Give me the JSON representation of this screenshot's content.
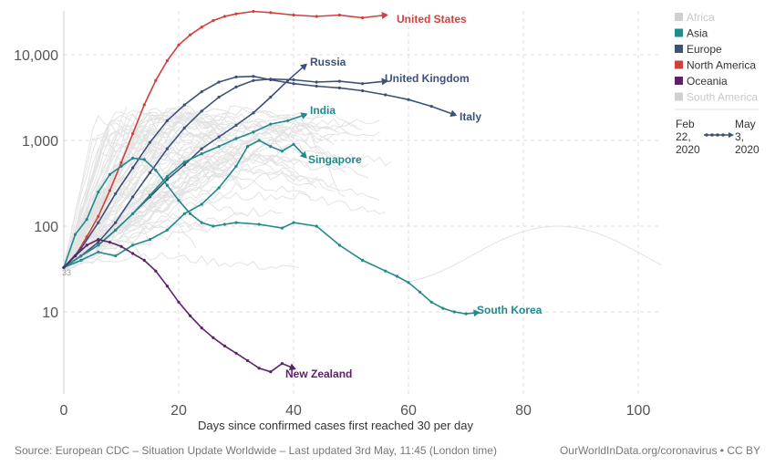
{
  "chart_data": {
    "type": "line",
    "title": "",
    "xlabel": "Days since confirmed cases first reached 30 per day",
    "ylabel": "",
    "y_scale": "log",
    "xlim": [
      0,
      104
    ],
    "ylim": [
      1,
      32000
    ],
    "x_ticks": [
      0,
      20,
      40,
      60,
      80,
      100
    ],
    "x_tick_labels": [
      "0",
      "20",
      "40",
      "60",
      "80",
      "100"
    ],
    "y_ticks": [
      10,
      100,
      1000,
      10000
    ],
    "y_tick_labels": [
      "10",
      "100",
      "1,000",
      "10,000"
    ],
    "grid": true,
    "legend_position": "right",
    "legend": [
      {
        "name": "Africa",
        "color": "#d0d0d0",
        "active": false
      },
      {
        "name": "Asia",
        "color": "#218a8c",
        "active": true
      },
      {
        "name": "Europe",
        "color": "#3d5178",
        "active": true
      },
      {
        "name": "North America",
        "color": "#d0413d",
        "active": true
      },
      {
        "name": "Oceania",
        "color": "#5b2268",
        "active": true
      },
      {
        "name": "South America",
        "color": "#d0d0d0",
        "active": false
      }
    ],
    "time_range": {
      "start": "Feb 22, 2020",
      "end": "May 3, 2020"
    },
    "origin_label": "33",
    "series": [
      {
        "name": "United States",
        "region": "North America",
        "color": "#d0413d",
        "end_label": true,
        "points": [
          [
            0,
            33
          ],
          [
            2,
            45
          ],
          [
            4,
            75
          ],
          [
            6,
            130
          ],
          [
            8,
            260
          ],
          [
            10,
            550
          ],
          [
            12,
            1200
          ],
          [
            14,
            2600
          ],
          [
            16,
            5000
          ],
          [
            18,
            8500
          ],
          [
            20,
            13000
          ],
          [
            22,
            17000
          ],
          [
            24,
            21000
          ],
          [
            26,
            25000
          ],
          [
            28,
            28000
          ],
          [
            30,
            30000
          ],
          [
            33,
            32000
          ],
          [
            36,
            31000
          ],
          [
            40,
            29000
          ],
          [
            44,
            28000
          ],
          [
            48,
            29000
          ],
          [
            52,
            27000
          ],
          [
            56,
            29000
          ]
        ]
      },
      {
        "name": "Russia",
        "region": "Europe",
        "color": "#3d5178",
        "end_label": true,
        "points": [
          [
            0,
            33
          ],
          [
            3,
            45
          ],
          [
            6,
            60
          ],
          [
            9,
            90
          ],
          [
            12,
            140
          ],
          [
            15,
            220
          ],
          [
            18,
            350
          ],
          [
            21,
            520
          ],
          [
            24,
            800
          ],
          [
            27,
            1100
          ],
          [
            30,
            1500
          ],
          [
            33,
            2100
          ],
          [
            36,
            3200
          ],
          [
            39,
            5000
          ],
          [
            42,
            7500
          ]
        ]
      },
      {
        "name": "United Kingdom",
        "region": "Europe",
        "color": "#3d5178",
        "end_label": true,
        "points": [
          [
            0,
            33
          ],
          [
            3,
            45
          ],
          [
            6,
            65
          ],
          [
            9,
            110
          ],
          [
            12,
            220
          ],
          [
            15,
            420
          ],
          [
            18,
            800
          ],
          [
            21,
            1400
          ],
          [
            24,
            2200
          ],
          [
            27,
            3200
          ],
          [
            30,
            4200
          ],
          [
            33,
            5000
          ],
          [
            36,
            5200
          ],
          [
            40,
            5100
          ],
          [
            44,
            4800
          ],
          [
            48,
            4900
          ],
          [
            52,
            4600
          ],
          [
            56,
            4900
          ]
        ]
      },
      {
        "name": "Italy",
        "region": "Europe",
        "color": "#3d5178",
        "end_label": true,
        "points": [
          [
            0,
            33
          ],
          [
            3,
            55
          ],
          [
            6,
            110
          ],
          [
            9,
            240
          ],
          [
            12,
            480
          ],
          [
            15,
            950
          ],
          [
            18,
            1700
          ],
          [
            21,
            2600
          ],
          [
            24,
            3700
          ],
          [
            27,
            4800
          ],
          [
            30,
            5500
          ],
          [
            33,
            5600
          ],
          [
            36,
            5100
          ],
          [
            40,
            4600
          ],
          [
            44,
            4300
          ],
          [
            48,
            4100
          ],
          [
            52,
            3800
          ],
          [
            56,
            3400
          ],
          [
            60,
            3000
          ],
          [
            64,
            2500
          ],
          [
            68,
            2000
          ]
        ]
      },
      {
        "name": "India",
        "region": "Asia",
        "color": "#218a8c",
        "end_label": true,
        "points": [
          [
            0,
            33
          ],
          [
            3,
            45
          ],
          [
            6,
            60
          ],
          [
            9,
            90
          ],
          [
            12,
            140
          ],
          [
            15,
            230
          ],
          [
            18,
            380
          ],
          [
            21,
            560
          ],
          [
            24,
            700
          ],
          [
            27,
            850
          ],
          [
            30,
            1050
          ],
          [
            33,
            1250
          ],
          [
            36,
            1550
          ],
          [
            39,
            1700
          ],
          [
            42,
            2000
          ]
        ]
      },
      {
        "name": "Singapore",
        "region": "Asia",
        "color": "#218a8c",
        "end_label": true,
        "points": [
          [
            0,
            33
          ],
          [
            3,
            40
          ],
          [
            6,
            50
          ],
          [
            9,
            45
          ],
          [
            12,
            60
          ],
          [
            15,
            70
          ],
          [
            18,
            90
          ],
          [
            21,
            140
          ],
          [
            24,
            180
          ],
          [
            27,
            280
          ],
          [
            30,
            500
          ],
          [
            32,
            850
          ],
          [
            34,
            1000
          ],
          [
            36,
            850
          ],
          [
            38,
            750
          ],
          [
            40,
            900
          ],
          [
            42,
            650
          ]
        ]
      },
      {
        "name": "South Korea",
        "region": "Asia",
        "color": "#218a8c",
        "end_label": true,
        "points": [
          [
            0,
            33
          ],
          [
            2,
            80
          ],
          [
            4,
            120
          ],
          [
            6,
            250
          ],
          [
            8,
            400
          ],
          [
            10,
            500
          ],
          [
            12,
            620
          ],
          [
            14,
            600
          ],
          [
            16,
            450
          ],
          [
            18,
            300
          ],
          [
            20,
            200
          ],
          [
            22,
            140
          ],
          [
            24,
            110
          ],
          [
            26,
            100
          ],
          [
            28,
            105
          ],
          [
            30,
            110
          ],
          [
            34,
            105
          ],
          [
            38,
            95
          ],
          [
            40,
            110
          ],
          [
            44,
            100
          ],
          [
            48,
            60
          ],
          [
            52,
            40
          ],
          [
            56,
            30
          ],
          [
            58,
            26
          ],
          [
            60,
            22
          ],
          [
            62,
            17
          ],
          [
            64,
            13
          ],
          [
            66,
            11
          ],
          [
            68,
            10
          ],
          [
            70,
            9.5
          ],
          [
            72,
            9.8
          ]
        ]
      },
      {
        "name": "New Zealand",
        "region": "Oceania",
        "color": "#5b2268",
        "end_label": true,
        "points": [
          [
            0,
            33
          ],
          [
            2,
            45
          ],
          [
            4,
            60
          ],
          [
            6,
            70
          ],
          [
            8,
            65
          ],
          [
            10,
            58
          ],
          [
            12,
            48
          ],
          [
            14,
            40
          ],
          [
            16,
            30
          ],
          [
            18,
            20
          ],
          [
            20,
            13
          ],
          [
            22,
            9
          ],
          [
            24,
            6.5
          ],
          [
            26,
            5
          ],
          [
            28,
            4
          ],
          [
            30,
            3.3
          ],
          [
            32,
            2.7
          ],
          [
            34,
            2.2
          ],
          [
            36,
            2
          ],
          [
            38,
            2.5
          ],
          [
            40,
            2.2
          ]
        ]
      }
    ]
  },
  "footer": {
    "source": "Source: European CDC – Situation Update Worldwide – Last updated 3rd May, 11:45 (London time)",
    "credit": "OurWorldInData.org/coronavirus • CC BY"
  }
}
